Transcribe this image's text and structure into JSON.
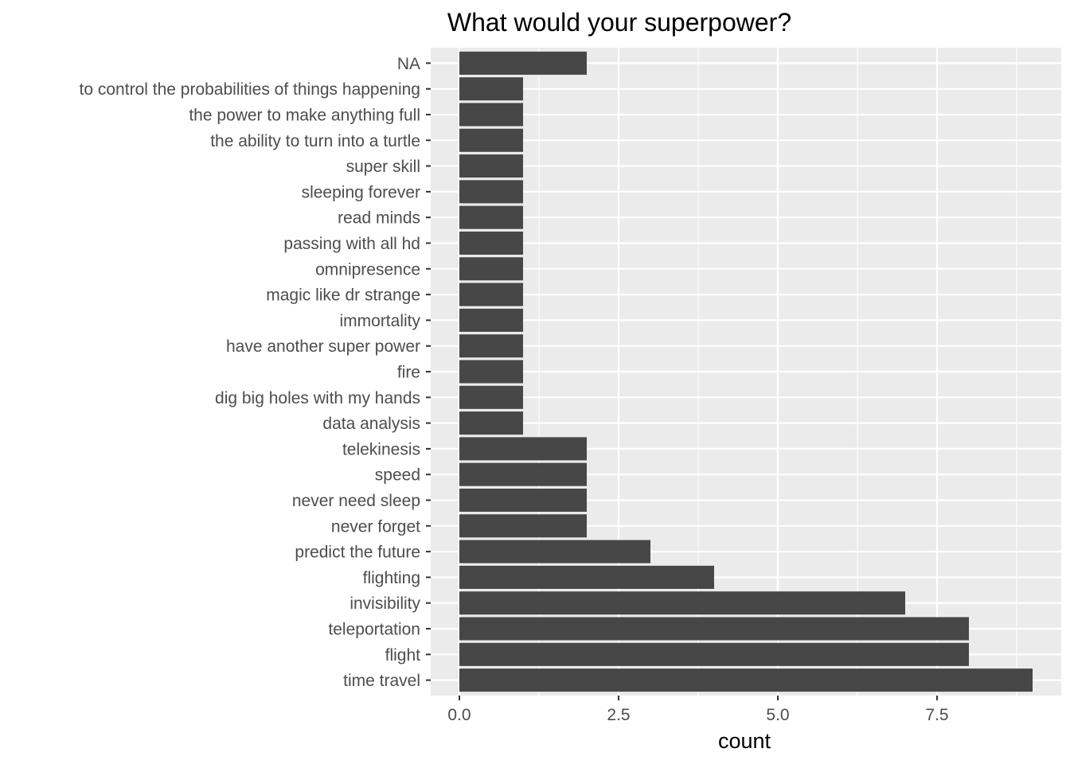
{
  "chart_data": {
    "type": "bar",
    "orientation": "horizontal",
    "title": "What would your superpower?",
    "xlabel": "count",
    "ylabel": "",
    "xlim": [
      -0.45,
      9.45
    ],
    "x_ticks": [
      0,
      2.5,
      5,
      7.5
    ],
    "x_tick_labels": [
      "0.0",
      "2.5",
      "5.0",
      "7.5"
    ],
    "grid": true,
    "legend": "none",
    "colors": {
      "bar": "#474747",
      "panel": "#ebebeb",
      "grid": "#ffffff",
      "text": "#4d4d4d",
      "tick": "#333333"
    },
    "categories": [
      "NA",
      "to control the probabilities of things happening",
      "the power to make anything full",
      "the ability to turn into a turtle",
      "super skill",
      "sleeping forever",
      "read minds",
      "passing with all hd",
      "omnipresence",
      "magic like dr strange",
      "immortality",
      "have another super power",
      "fire",
      "dig big holes with my hands",
      "data analysis",
      "telekinesis",
      "speed",
      "never need sleep",
      "never forget",
      "predict the future",
      "flighting",
      "invisibility",
      "teleportation",
      "flight",
      "time travel"
    ],
    "values": [
      2,
      1,
      1,
      1,
      1,
      1,
      1,
      1,
      1,
      1,
      1,
      1,
      1,
      1,
      1,
      2,
      2,
      2,
      2,
      3,
      4,
      7,
      8,
      8,
      9
    ]
  }
}
